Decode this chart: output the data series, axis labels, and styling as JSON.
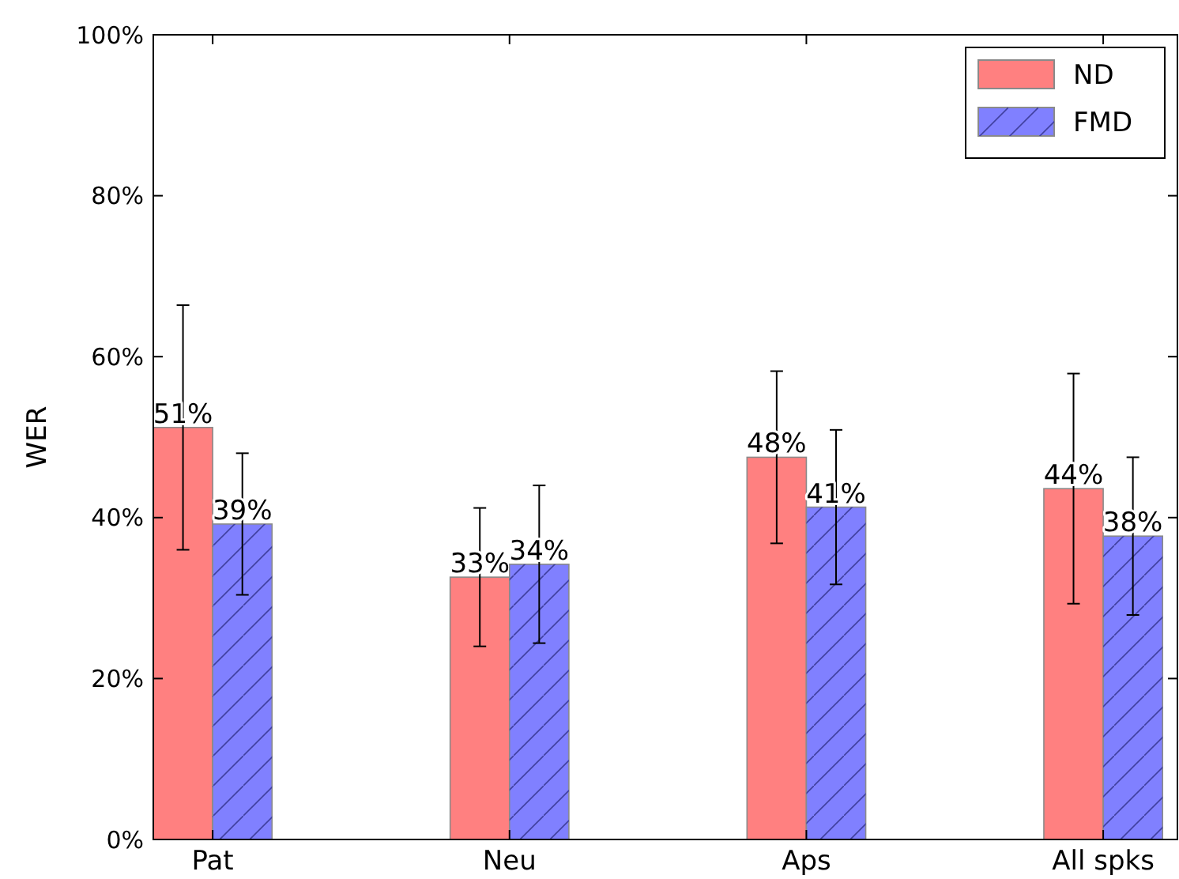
{
  "chart_data": {
    "type": "bar",
    "ylabel": "WER",
    "categories": [
      "Pat",
      "Neu",
      "Aps",
      "All spks"
    ],
    "series": [
      {
        "name": "ND",
        "color": "#ff8080",
        "values": [
          51.2,
          32.6,
          47.5,
          43.6
        ],
        "errors": [
          15.2,
          8.6,
          10.7,
          14.3
        ],
        "value_labels": [
          "51%",
          "33%",
          "48%",
          "44%"
        ]
      },
      {
        "name": "FMD",
        "color": "#8080ff",
        "values": [
          39.2,
          34.2,
          41.3,
          37.7
        ],
        "errors": [
          8.8,
          9.8,
          9.6,
          9.8
        ],
        "value_labels": [
          "39%",
          "34%",
          "41%",
          "38%"
        ]
      }
    ],
    "ylim": [
      0,
      100
    ],
    "yticks": [
      {
        "value": 0,
        "label": "0%"
      },
      {
        "value": 20,
        "label": "20%"
      },
      {
        "value": 40,
        "label": "40%"
      },
      {
        "value": 60,
        "label": "60%"
      },
      {
        "value": 80,
        "label": "80%"
      },
      {
        "value": 100,
        "label": "100%"
      }
    ],
    "grid": false,
    "legend": "top right"
  }
}
